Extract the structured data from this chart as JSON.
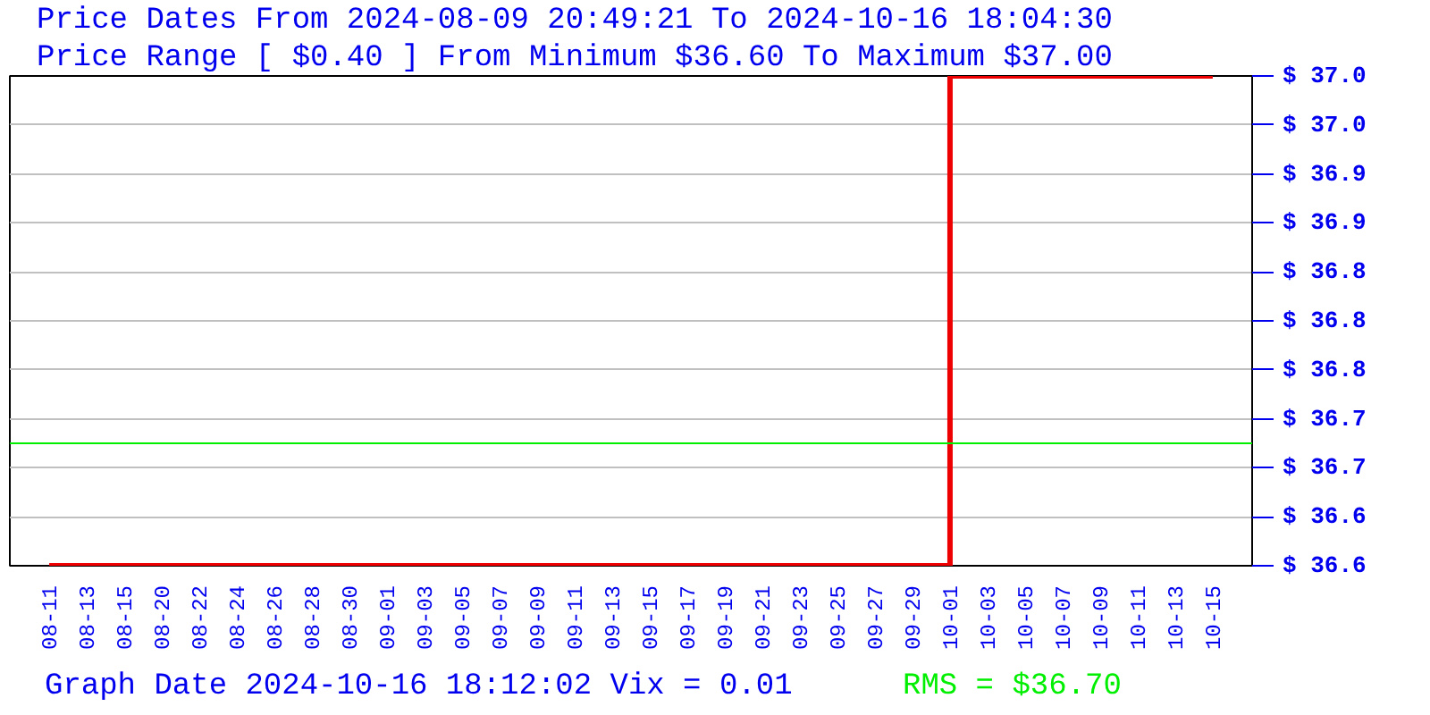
{
  "chart_data": {
    "type": "step",
    "title": "Price Dates From 2024-08-09 20:49:21 To 2024-10-16 18:04:30",
    "subtitle": "Price Range [ $0.40 ] From Minimum $36.60 To Maximum $37.00",
    "annotations": [
      "Graph Date 2024-10-16 18:12:02 Vix = 0.01",
      "RMS = $36.70"
    ],
    "categories": [
      "08-11",
      "08-13",
      "08-15",
      "08-20",
      "08-22",
      "08-24",
      "08-26",
      "08-28",
      "08-30",
      "09-01",
      "09-03",
      "09-05",
      "09-07",
      "09-09",
      "09-11",
      "09-13",
      "09-15",
      "09-17",
      "09-19",
      "09-21",
      "09-23",
      "09-25",
      "09-27",
      "09-29",
      "10-01",
      "10-03",
      "10-05",
      "10-07",
      "10-09",
      "10-11",
      "10-13",
      "10-15"
    ],
    "series": [
      {
        "color": "#ee0000",
        "values": [
          36.6,
          36.6,
          36.6,
          36.6,
          36.6,
          36.6,
          36.6,
          36.6,
          36.6,
          36.6,
          36.6,
          36.6,
          36.6,
          36.6,
          36.6,
          36.6,
          36.6,
          36.6,
          36.6,
          36.6,
          36.6,
          36.6,
          36.6,
          36.6,
          37.0,
          37.0,
          37.0,
          37.0,
          37.0,
          37.0,
          37.0,
          37.0
        ]
      }
    ],
    "ylim": [
      36.6,
      37.0
    ],
    "yticks": [
      {
        "value": 36.6,
        "label": "$ 36.6"
      },
      {
        "value": 36.64,
        "label": "$ 36.6"
      },
      {
        "value": 36.68,
        "label": "$ 36.7"
      },
      {
        "value": 36.72,
        "label": "$ 36.7"
      },
      {
        "value": 36.76,
        "label": "$ 36.8"
      },
      {
        "value": 36.8,
        "label": "$ 36.8"
      },
      {
        "value": 36.84,
        "label": "$ 36.8"
      },
      {
        "value": 36.88,
        "label": "$ 36.9"
      },
      {
        "value": 36.92,
        "label": "$ 36.9"
      },
      {
        "value": 36.96,
        "label": "$ 37.0"
      },
      {
        "value": 37.0,
        "label": "$ 37.0"
      }
    ],
    "ref_lines": [
      {
        "axis": "y",
        "value": 36.7,
        "color": "#00ee00"
      }
    ],
    "grid": "y"
  }
}
